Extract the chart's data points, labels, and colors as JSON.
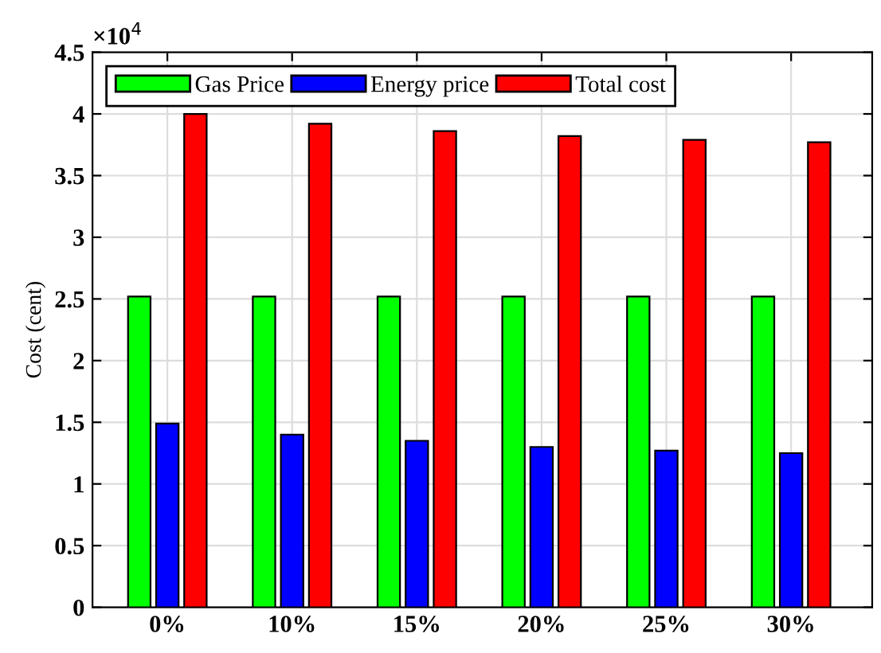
{
  "chart_data": {
    "type": "bar",
    "ylabel": "Cost (cent)",
    "categories": [
      "0%",
      "10%",
      "15%",
      "20%",
      "25%",
      "30%"
    ],
    "series": [
      {
        "name": "Gas Price",
        "color": "#00ff00",
        "values": [
          2.52,
          2.52,
          2.52,
          2.52,
          2.52,
          2.52
        ]
      },
      {
        "name": "Energy price",
        "color": "#0000ff",
        "values": [
          1.49,
          1.4,
          1.35,
          1.3,
          1.27,
          1.25
        ]
      },
      {
        "name": "Total cost",
        "color": "#ff0000",
        "values": [
          4.0,
          3.92,
          3.86,
          3.82,
          3.79,
          3.77
        ]
      }
    ],
    "ylim": [
      0,
      4.5
    ],
    "yticks": [
      0,
      0.5,
      1,
      1.5,
      2,
      2.5,
      3,
      3.5,
      4,
      4.5
    ],
    "annotations": [
      "×10$^{4}$"
    ],
    "grid": true,
    "legend": "top left"
  }
}
